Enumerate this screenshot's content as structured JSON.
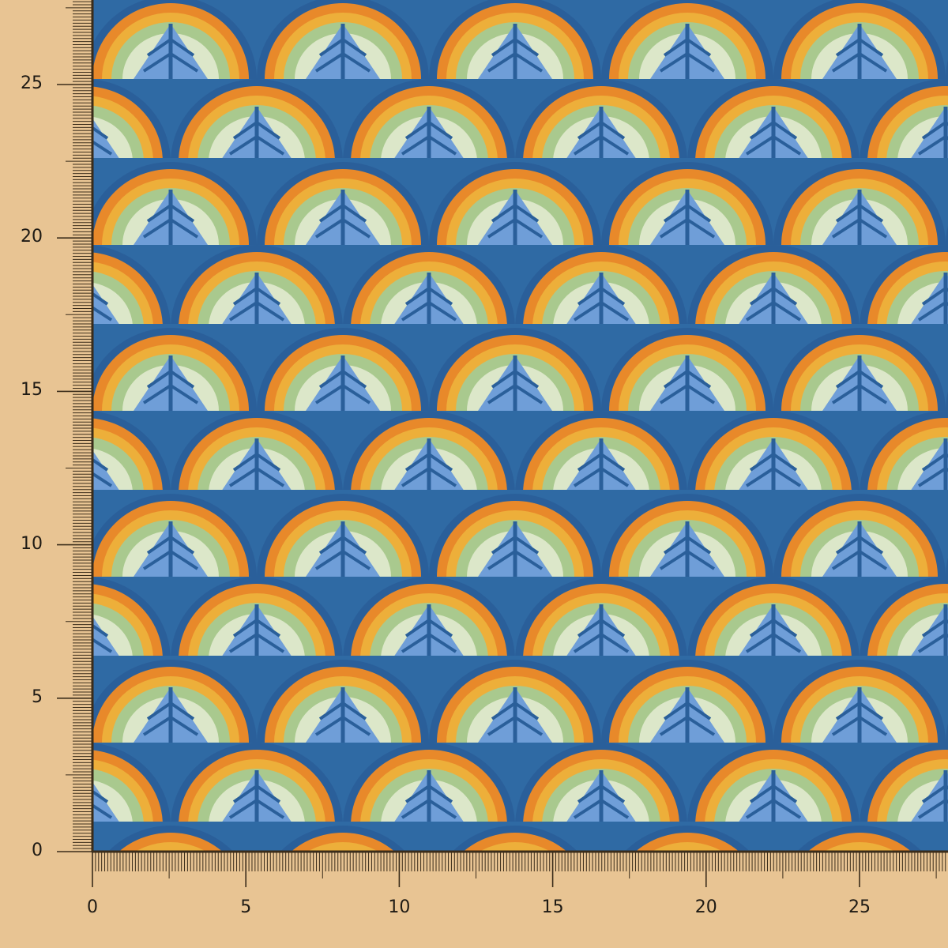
{
  "scale": {
    "unit_ticks_per_label": 5,
    "x_labels": [
      "0",
      "5",
      "10",
      "15",
      "20",
      "25"
    ],
    "y_labels": [
      "0",
      "5",
      "10",
      "15",
      "20",
      "25"
    ],
    "x_max": 27.9,
    "y_max": 27.7
  },
  "colors": {
    "background": "#e8c493",
    "ruler_ink": "#3a2c1a",
    "fabric_blue_dark": "#2a5f9a",
    "fabric_blue_light": "#6f9ed8",
    "fabric_orange": "#e8892a",
    "fabric_yellow": "#f0c040",
    "fabric_green": "#a9c98e",
    "fabric_cream": "#e9efd8"
  },
  "pattern": "peacock-feather fan scales"
}
